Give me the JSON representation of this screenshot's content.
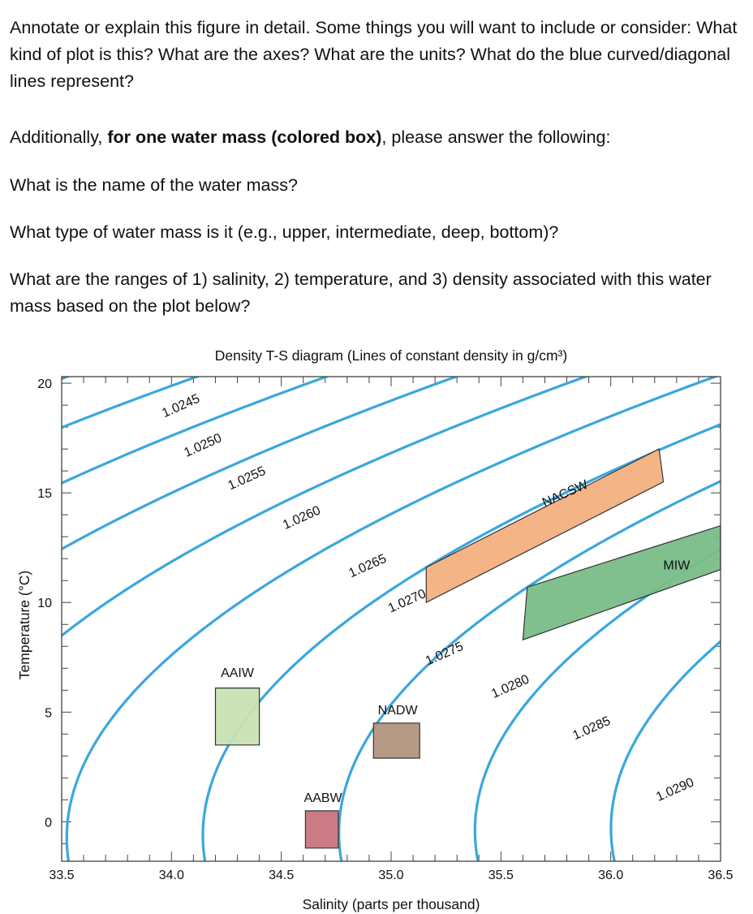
{
  "prompt": {
    "para1": "Annotate or explain this figure in detail. Some things you will want to include or consider: What kind of plot is this? What are the axes? What are the units? What do the blue curved/diagonal lines represent?",
    "para2_prefix": "Additionally, ",
    "para2_bold": "for one water mass (colored box)",
    "para2_suffix": ", please answer the following:",
    "q1": "What is the name of the water mass?",
    "q2": "What type of water mass is it (e.g., upper, intermediate, deep, bottom)?",
    "q3": "What are the ranges of 1) salinity, 2) temperature, and 3) density associated with this water mass based on the plot below?"
  },
  "chart_data": {
    "type": "line",
    "title": "Density T-S diagram (Lines of constant density in g/cm³)",
    "xlabel": "Salinity (parts per thousand)",
    "ylabel": "Temperature (°C)",
    "xlim": [
      33.5,
      36.5
    ],
    "ylim": [
      -1.8,
      20.3
    ],
    "xticks": [
      "33.5",
      "34.0",
      "34.5",
      "35.0",
      "35.5",
      "36.0",
      "36.5"
    ],
    "yticks": [
      "0",
      "5",
      "10",
      "15",
      "20"
    ],
    "line_color": "#3aa7dd",
    "isopycnals": [
      {
        "label": "1.0245",
        "sigma": 24.5
      },
      {
        "label": "1.0250",
        "sigma": 25.0
      },
      {
        "label": "1.0255",
        "sigma": 25.5
      },
      {
        "label": "1.0260",
        "sigma": 26.0
      },
      {
        "label": "1.0265",
        "sigma": 26.5
      },
      {
        "label": "1.0270",
        "sigma": 27.0
      },
      {
        "label": "1.0275",
        "sigma": 27.5
      },
      {
        "label": "1.0280",
        "sigma": 28.0
      },
      {
        "label": "1.0285",
        "sigma": 28.5
      },
      {
        "label": "1.0290",
        "sigma": 29.0
      }
    ],
    "water_masses": [
      {
        "name": "AAIW",
        "color": "#c8e2b2",
        "polygon": [
          [
            34.2,
            3.5
          ],
          [
            34.2,
            6.1
          ],
          [
            34.4,
            6.1
          ],
          [
            34.4,
            3.5
          ]
        ]
      },
      {
        "name": "NADW",
        "color": "#b39580",
        "polygon": [
          [
            34.92,
            2.9
          ],
          [
            34.92,
            4.5
          ],
          [
            35.13,
            4.5
          ],
          [
            35.13,
            2.9
          ]
        ]
      },
      {
        "name": "AABW",
        "color": "#c87480",
        "polygon": [
          [
            34.61,
            -1.2
          ],
          [
            34.61,
            0.5
          ],
          [
            34.76,
            0.5
          ],
          [
            34.76,
            -1.2
          ]
        ]
      },
      {
        "name": "NACSW",
        "color": "#f3b07f",
        "polygon": [
          [
            35.16,
            10.0
          ],
          [
            35.16,
            11.6
          ],
          [
            36.22,
            17.0
          ],
          [
            36.24,
            15.5
          ]
        ]
      },
      {
        "name": "MIW",
        "color": "#79bd88",
        "polygon": [
          [
            35.6,
            8.3
          ],
          [
            35.62,
            10.7
          ],
          [
            36.5,
            13.5
          ],
          [
            36.5,
            11.5
          ]
        ]
      }
    ]
  }
}
